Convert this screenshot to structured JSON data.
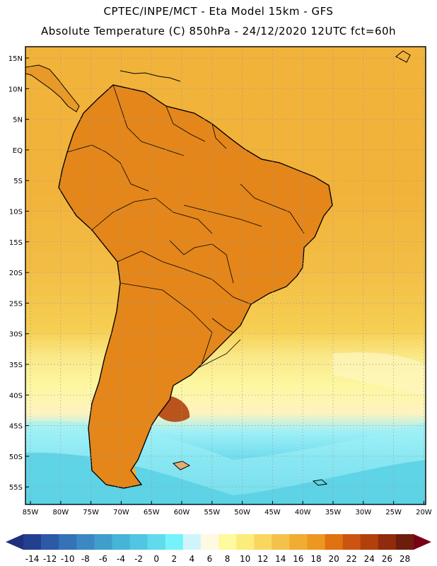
{
  "header": {
    "title_line1": "CPTEC/INPE/MCT -  Eta Model 15km - GFS",
    "title_line2": "Absolute Temperature (C) 850hPa - 24/12/2020 12UTC fct=60h"
  },
  "map": {
    "lat_labels": [
      "15N",
      "10N",
      "5N",
      "EQ",
      "5S",
      "10S",
      "15S",
      "20S",
      "25S",
      "30S",
      "35S",
      "40S",
      "45S",
      "50S",
      "55S"
    ],
    "lon_labels": [
      "85W",
      "80W",
      "75W",
      "70W",
      "65W",
      "60W",
      "55W",
      "50W",
      "45W",
      "40W",
      "35W",
      "30W",
      "25W",
      "20W"
    ],
    "colors": {
      "ocean_warm": "#f2b33a",
      "ocean_subtropical": "#f6cf52",
      "ocean_temperate": "#fdf7a0",
      "ocean_cool": "#9ff0f6",
      "ocean_cold": "#56cfe3",
      "land_warm": "#e4861a",
      "land_hot": "#cf5f10",
      "land_very_hot": "#b2420b",
      "patagonia_hot": "#a83a0c",
      "coast": "#000000",
      "grid": "#9a9a9a"
    }
  },
  "colorbar": {
    "ticks": [
      "-14",
      "-12",
      "-10",
      "-8",
      "-6",
      "-4",
      "-2",
      "0",
      "2",
      "4",
      "6",
      "8",
      "10",
      "12",
      "14",
      "16",
      "18",
      "20",
      "22",
      "24",
      "26",
      "28"
    ],
    "colors": [
      "#233f8f",
      "#2c59a8",
      "#3473b7",
      "#3c88c2",
      "#3f9fcc",
      "#46b3d8",
      "#50c6e2",
      "#5fdbec",
      "#74f3fb",
      "#cff5fb",
      "#fff9e4",
      "#fff9a0",
      "#fcec7c",
      "#f9d75e",
      "#f4c24a",
      "#f0ad31",
      "#ec9820",
      "#e07210",
      "#cc5410",
      "#b2400d",
      "#902b0c",
      "#6d1d0c"
    ],
    "low_arrow_color": "#1e2f7f",
    "high_arrow_color": "#790016"
  }
}
